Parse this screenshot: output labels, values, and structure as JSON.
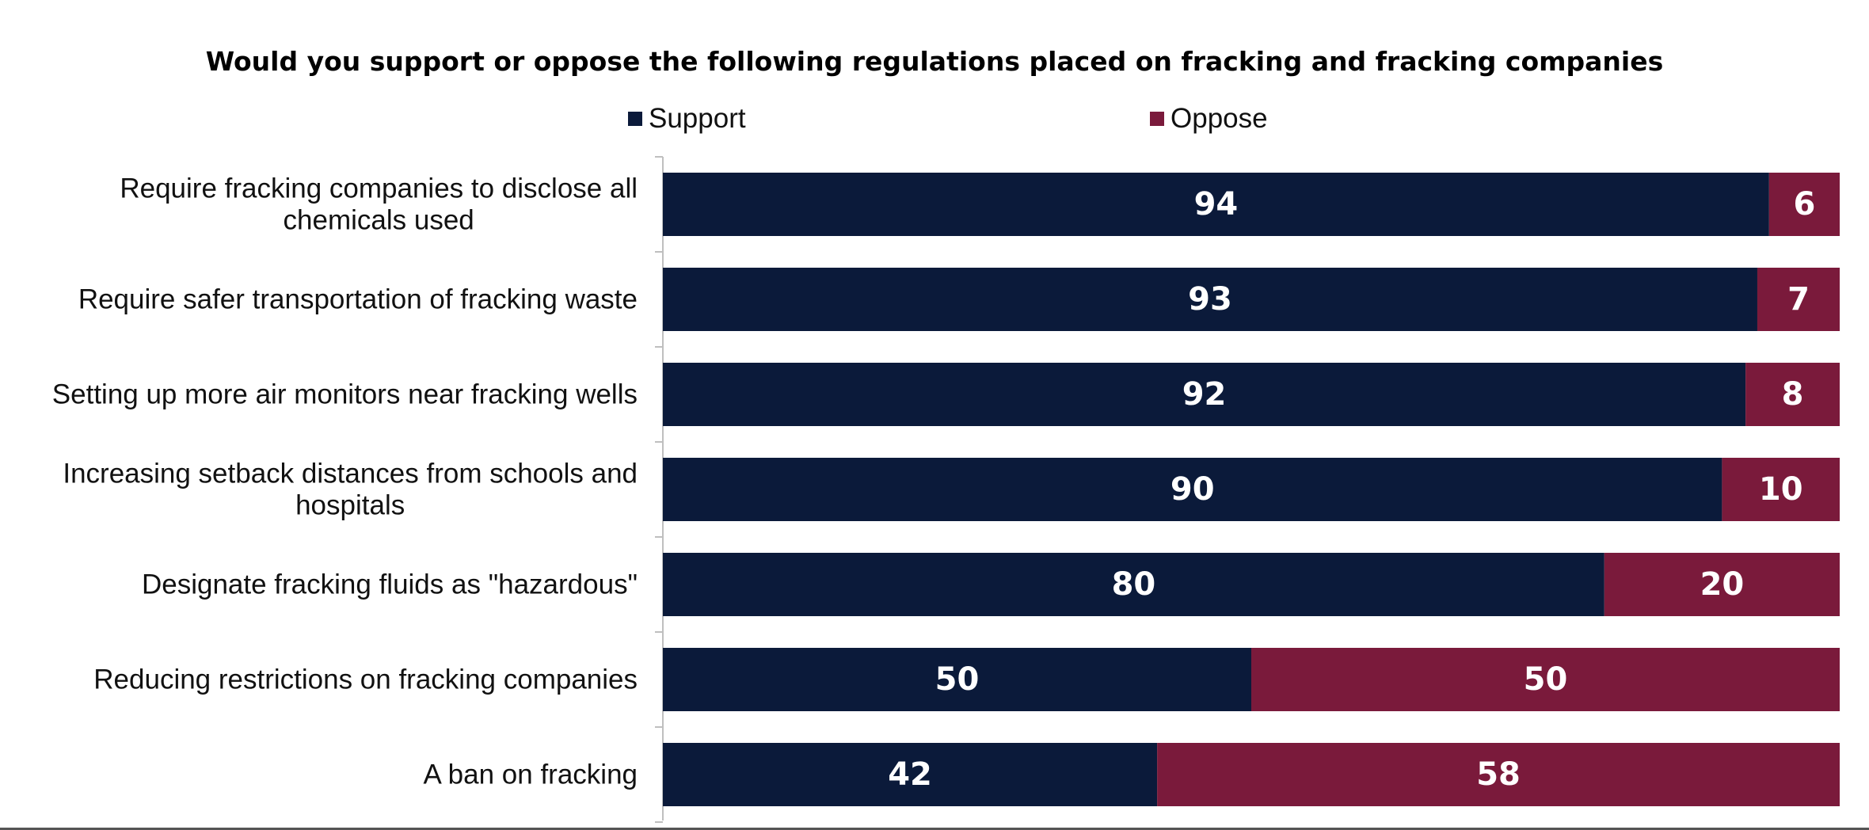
{
  "chart_data": {
    "type": "bar",
    "orientation": "horizontal",
    "stacked": true,
    "title": "Would you support or oppose the following regulations placed on fracking and fracking companies",
    "categories": [
      "Require fracking companies to disclose all chemicals used",
      "Require safer transportation of fracking waste",
      "Setting up more air monitors near fracking wells",
      "Increasing setback distances from schools and hospitals",
      "Designate fracking fluids as \"hazardous\"",
      "Reducing restrictions on fracking companies",
      "A ban on fracking"
    ],
    "series": [
      {
        "name": "Support",
        "color": "#0b1a3a",
        "values": [
          94,
          93,
          92,
          90,
          80,
          50,
          42
        ]
      },
      {
        "name": "Oppose",
        "color": "#7a1a3b",
        "values": [
          6,
          7,
          8,
          10,
          20,
          50,
          58
        ]
      }
    ],
    "xlim": [
      0,
      100
    ],
    "legend_position": "top",
    "grid": false
  }
}
